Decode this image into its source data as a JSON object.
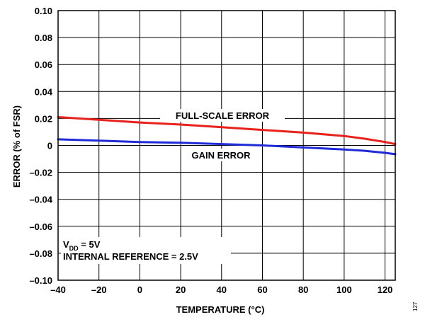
{
  "chart_data": {
    "type": "line",
    "xlabel": "TEMPERATURE (°C)",
    "ylabel": "ERROR (% of FSR)",
    "xlim": [
      -40,
      125
    ],
    "ylim": [
      -0.1,
      0.1
    ],
    "x_ticks": [
      -40,
      -20,
      0,
      20,
      40,
      60,
      80,
      100,
      120
    ],
    "x_tick_labels": [
      "–40",
      "–20",
      "0",
      "20",
      "40",
      "60",
      "80",
      "100",
      "120"
    ],
    "y_ticks": [
      0.1,
      0.08,
      0.06,
      0.04,
      0.02,
      0,
      -0.02,
      -0.04,
      -0.06,
      -0.08,
      -0.1
    ],
    "y_tick_labels": [
      "0.10",
      "0.08",
      "0.06",
      "0.04",
      "0.02",
      "0",
      "–0.02",
      "–0.04",
      "–0.06",
      "–0.08",
      "–0.10"
    ],
    "grid": true,
    "series": [
      {
        "name": "FULL-SCALE ERROR",
        "color": "#e8211c",
        "x": [
          -40,
          -20,
          0,
          20,
          40,
          60,
          80,
          100,
          110,
          120,
          125
        ],
        "y": [
          0.021,
          0.019,
          0.017,
          0.0155,
          0.0135,
          0.0115,
          0.0095,
          0.007,
          0.005,
          0.0025,
          0.001
        ]
      },
      {
        "name": "GAIN ERROR",
        "color": "#1e2bd6",
        "x": [
          -40,
          -20,
          0,
          20,
          40,
          60,
          80,
          100,
          110,
          120,
          125
        ],
        "y": [
          0.0045,
          0.0035,
          0.0025,
          0.002,
          0.001,
          0.0,
          -0.0015,
          -0.003,
          -0.004,
          -0.0055,
          -0.0065
        ]
      }
    ],
    "annotation": {
      "vdd_main": "V",
      "vdd_sub": "DD",
      "vdd_rest": " = 5V",
      "ref": "INTERNAL REFERENCE = 2.5V"
    },
    "figure_id": "127"
  }
}
